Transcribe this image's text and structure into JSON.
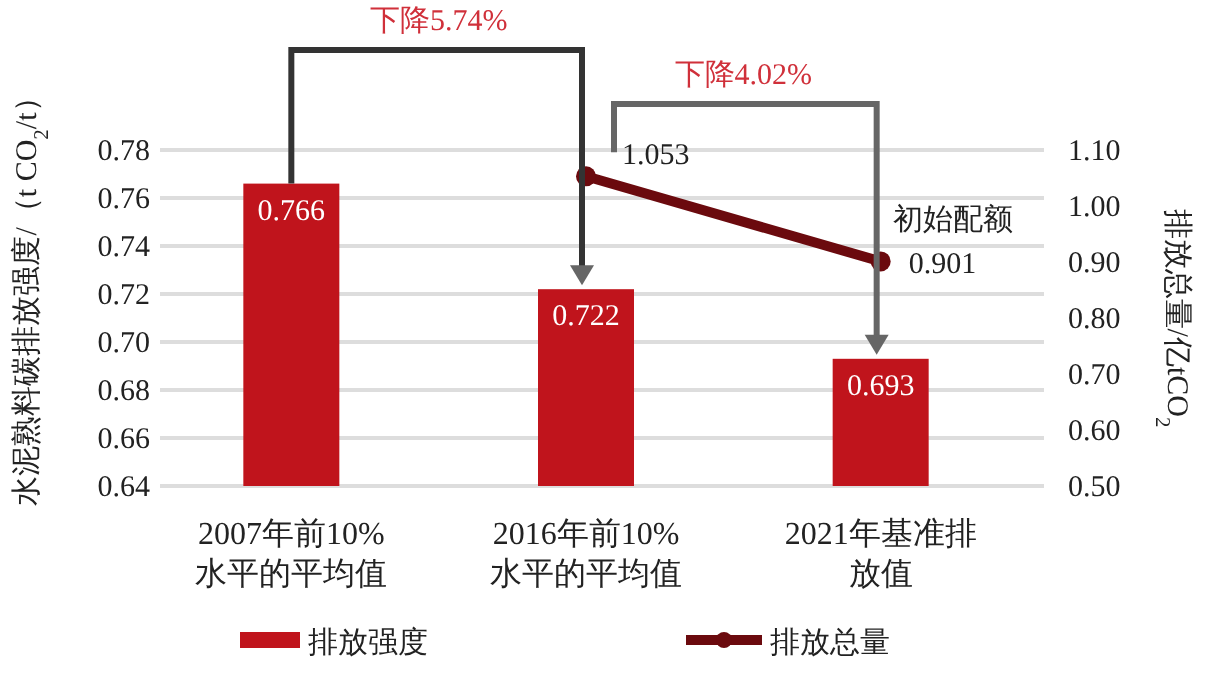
{
  "chart_data": {
    "type": "bar",
    "categories": [
      "2007年前10%水平的平均值",
      "2016年前10%水平的平均值",
      "2021年基准排放值"
    ],
    "series": [
      {
        "name": "排放强度",
        "color": "#c0141c",
        "values": [
          0.766,
          0.722,
          0.693
        ]
      },
      {
        "name": "排放总量",
        "type": "line",
        "axis": "y2",
        "color": "#6b0a0e",
        "values": [
          null,
          1.053,
          0.901
        ]
      }
    ],
    "ylabel": "水泥熟料碳排放强度/（t CO$_{2}$/t）",
    "y2label": "排放总量/亿tCO$_{2}$",
    "ylim": [
      0.64,
      0.78
    ],
    "yticks": [
      0.64,
      0.66,
      0.68,
      {
        "value": 0.7,
        "label": "0.70"
      },
      0.72,
      0.74,
      0.76,
      0.78
    ],
    "y2lim": [
      0.5,
      1.1
    ],
    "y2ticks": [
      {
        "value": 0.5,
        "label": "0.50"
      },
      {
        "value": 0.6,
        "label": "0.60"
      },
      {
        "value": 0.7,
        "label": "0.70"
      },
      {
        "value": 0.8,
        "label": "0.80"
      },
      {
        "value": 0.9,
        "label": "0.90"
      },
      {
        "value": 1.0,
        "label": "1.00"
      },
      {
        "value": 1.1,
        "label": "1.10"
      }
    ],
    "annotations": [
      "下降5.74%",
      "下降4.02%",
      "初始配额"
    ],
    "data_labels": true,
    "grid": "y",
    "legend": "bottom",
    "marker": "circle"
  }
}
